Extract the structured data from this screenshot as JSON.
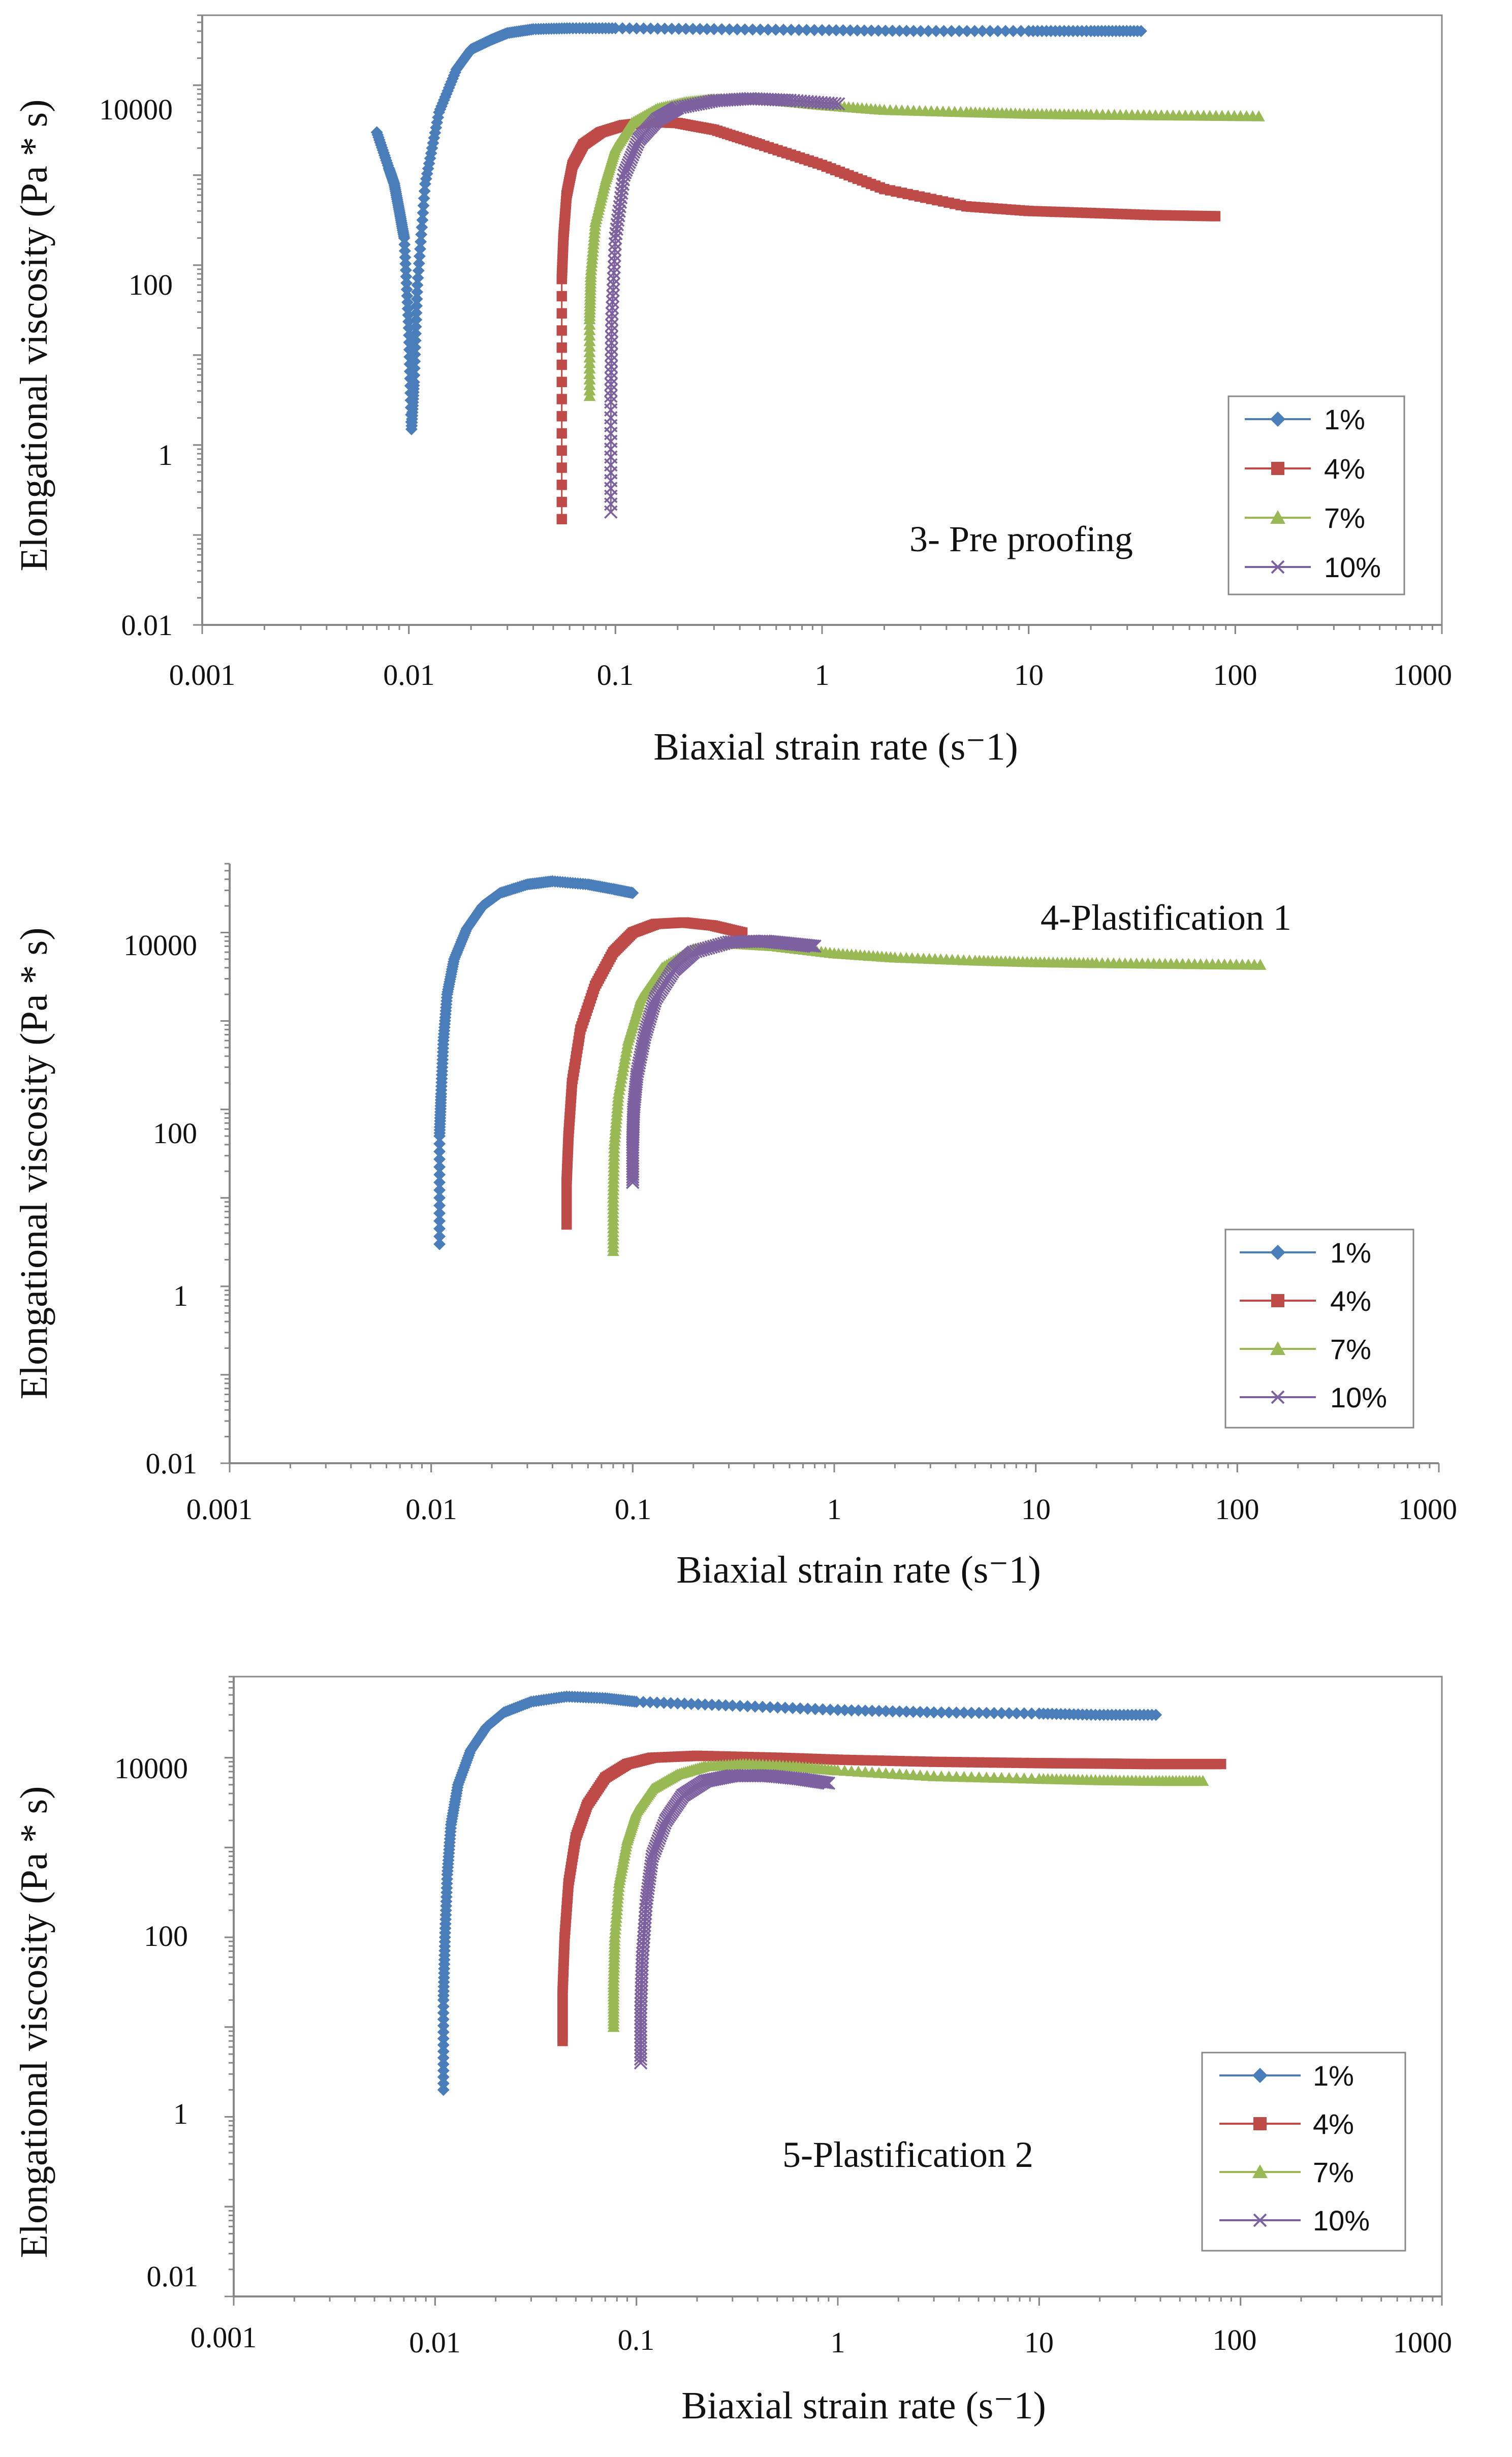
{
  "figure": {
    "colors": {
      "s1": "#4A7EBB",
      "s2": "#BE4B48",
      "s3": "#98B954",
      "s4": "#7D60A0",
      "axis": "#888888",
      "text": "#111111",
      "legend_border": "#888888"
    }
  },
  "chart_data": [
    {
      "type": "scatter",
      "xscale": "log",
      "yscale": "log",
      "xlabel": "Biaxial strain rate (s⁻1)",
      "ylabel": "Elongational viscosity (Pa * s)",
      "annotation": "3- Pre proofing",
      "annotation_position": "lower-center-right",
      "xlim": [
        0.001,
        1000
      ],
      "ylim": [
        0.01,
        60000
      ],
      "xticks": [
        0.001,
        0.01,
        0.1,
        1,
        10,
        100,
        1000
      ],
      "xtick_labels": [
        "0.001",
        "0.01",
        "0.1",
        "1",
        "10",
        "100",
        "1000"
      ],
      "yticks": [
        0.01,
        1,
        100,
        10000
      ],
      "ytick_labels": [
        "0.01",
        "1",
        "100",
        "10000"
      ],
      "legend_position": "lower-right",
      "series": [
        {
          "name": "1%",
          "marker": "diamond",
          "x": [
            0.007,
            0.008,
            0.0085,
            0.009,
            0.0095,
            0.01,
            0.0103,
            0.0106,
            0.011,
            0.012,
            0.014,
            0.017,
            0.02,
            0.025,
            0.03,
            0.04,
            0.06,
            0.1,
            0.3,
            1,
            3,
            10,
            20,
            35
          ],
          "y": [
            3000,
            1200,
            800,
            400,
            200,
            20,
            1.5,
            5,
            60,
            800,
            5000,
            15000,
            25000,
            32000,
            38000,
            42000,
            43000,
            43000,
            42000,
            41000,
            40000,
            40000,
            40000,
            40000
          ]
        },
        {
          "name": "4%",
          "marker": "square",
          "x": [
            0.055,
            0.055,
            0.056,
            0.058,
            0.062,
            0.07,
            0.085,
            0.11,
            0.15,
            0.2,
            0.3,
            0.5,
            1,
            2,
            5,
            10,
            20,
            40,
            80
          ],
          "y": [
            0.15,
            70,
            200,
            600,
            1300,
            2200,
            3000,
            3600,
            3900,
            3800,
            3200,
            2200,
            1300,
            700,
            450,
            400,
            380,
            360,
            350
          ]
        },
        {
          "name": "7%",
          "marker": "triangle",
          "x": [
            0.075,
            0.075,
            0.076,
            0.08,
            0.09,
            0.1,
            0.12,
            0.16,
            0.22,
            0.3,
            0.5,
            1,
            2,
            5,
            10,
            20,
            50,
            130
          ],
          "y": [
            3.5,
            25,
            80,
            300,
            900,
            2000,
            3800,
            5500,
            6500,
            7000,
            7000,
            6000,
            5300,
            5000,
            4800,
            4700,
            4600,
            4500
          ]
        },
        {
          "name": "10%",
          "marker": "x",
          "x": [
            0.095,
            0.095,
            0.096,
            0.1,
            0.11,
            0.13,
            0.16,
            0.2,
            0.3,
            0.45,
            0.7,
            1.2
          ],
          "y": [
            0.18,
            3,
            25,
            200,
            1000,
            2500,
            4200,
            5600,
            6700,
            7100,
            6800,
            6200
          ]
        }
      ]
    },
    {
      "type": "scatter",
      "xscale": "log",
      "yscale": "log",
      "xlabel": "Biaxial strain rate (s⁻1)",
      "ylabel": "Elongational viscosity (Pa * s)",
      "annotation": "4-Plastification 1",
      "annotation_position": "top-right",
      "xlim": [
        0.001,
        1000
      ],
      "ylim": [
        0.01,
        60000
      ],
      "xticks": [
        0.001,
        0.01,
        0.1,
        1,
        10,
        100,
        1000
      ],
      "xtick_labels": [
        "0.001",
        "0.01",
        "0.1",
        "1",
        "10",
        "100",
        "1000"
      ],
      "yticks": [
        0.01,
        1,
        100,
        10000
      ],
      "ytick_labels": [
        "0.01",
        "1",
        "100",
        "10000"
      ],
      "legend_position": "lower-right",
      "series": [
        {
          "name": "1%",
          "marker": "diamond",
          "x": [
            0.011,
            0.011,
            0.0112,
            0.0115,
            0.012,
            0.013,
            0.015,
            0.018,
            0.022,
            0.03,
            0.04,
            0.06,
            0.08,
            0.1
          ],
          "y": [
            3,
            50,
            150,
            600,
            2000,
            5000,
            11000,
            20000,
            28000,
            35000,
            38000,
            35000,
            31000,
            28000
          ]
        },
        {
          "name": "4%",
          "marker": "square",
          "x": [
            0.047,
            0.047,
            0.048,
            0.05,
            0.055,
            0.065,
            0.08,
            0.1,
            0.13,
            0.18,
            0.25,
            0.35
          ],
          "y": [
            5,
            15,
            50,
            200,
            800,
            2500,
            6000,
            10000,
            12500,
            13000,
            12000,
            10000
          ]
        },
        {
          "name": "7%",
          "marker": "triangle",
          "x": [
            0.08,
            0.08,
            0.081,
            0.085,
            0.095,
            0.11,
            0.14,
            0.2,
            0.3,
            0.5,
            1,
            2,
            5,
            10,
            20,
            50,
            130
          ],
          "y": [
            2.5,
            10,
            40,
            150,
            600,
            1800,
            4000,
            6500,
            7500,
            7000,
            5800,
            5200,
            4800,
            4600,
            4500,
            4400,
            4300
          ]
        },
        {
          "name": "10%",
          "marker": "x",
          "x": [
            0.1,
            0.1,
            0.101,
            0.105,
            0.115,
            0.13,
            0.16,
            0.2,
            0.3,
            0.45,
            0.6,
            0.8
          ],
          "y": [
            15,
            40,
            100,
            250,
            700,
            1800,
            3800,
            6000,
            7800,
            8000,
            7500,
            7000
          ]
        }
      ]
    },
    {
      "type": "scatter",
      "xscale": "log",
      "yscale": "log",
      "xlabel": "Biaxial strain rate (s⁻1)",
      "ylabel": "Elongational viscosity (Pa * s)",
      "annotation": "5-Plastification 2",
      "annotation_position": "lower-center-right",
      "xlim": [
        0.001,
        1000
      ],
      "ylim": [
        0.01,
        80000
      ],
      "xticks": [
        0.001,
        0.01,
        0.1,
        1,
        10,
        100,
        1000
      ],
      "xtick_labels": [
        "0.001",
        "0.01",
        "0.1",
        "1",
        "10",
        "100",
        "1000"
      ],
      "yticks": [
        0.01,
        1,
        100,
        10000
      ],
      "ytick_labels": [
        "0.01",
        "1",
        "100",
        "10000"
      ],
      "legend_position": "lower-right",
      "series": [
        {
          "name": "1%",
          "marker": "diamond",
          "x": [
            0.011,
            0.011,
            0.0112,
            0.0115,
            0.012,
            0.013,
            0.015,
            0.018,
            0.022,
            0.03,
            0.045,
            0.07,
            0.1,
            0.3,
            1,
            3,
            10,
            20,
            38
          ],
          "y": [
            2,
            20,
            100,
            500,
            1800,
            5000,
            12000,
            22000,
            32000,
            42000,
            48000,
            46000,
            42000,
            38000,
            34000,
            32000,
            31000,
            30000,
            30000
          ]
        },
        {
          "name": "4%",
          "marker": "square",
          "x": [
            0.043,
            0.043,
            0.044,
            0.046,
            0.05,
            0.057,
            0.07,
            0.09,
            0.12,
            0.2,
            0.5,
            1,
            3,
            10,
            20,
            35,
            80
          ],
          "y": [
            7,
            25,
            100,
            400,
            1300,
            3000,
            6000,
            8500,
            10000,
            10500,
            10000,
            9500,
            9000,
            8700,
            8600,
            8500,
            8500
          ]
        },
        {
          "name": "7%",
          "marker": "triangle",
          "x": [
            0.077,
            0.077,
            0.078,
            0.082,
            0.09,
            0.1,
            0.12,
            0.16,
            0.22,
            0.35,
            0.6,
            1,
            3,
            10,
            20,
            38,
            65
          ],
          "y": [
            10,
            30,
            100,
            400,
            1200,
            2500,
            4500,
            6500,
            8000,
            8500,
            8000,
            7200,
            6200,
            5800,
            5600,
            5500,
            5500
          ]
        },
        {
          "name": "10%",
          "marker": "x",
          "x": [
            0.105,
            0.105,
            0.107,
            0.112,
            0.12,
            0.14,
            0.17,
            0.22,
            0.3,
            0.45,
            0.65,
            0.9
          ],
          "y": [
            4,
            15,
            60,
            250,
            800,
            2000,
            3800,
            5500,
            6300,
            6300,
            5800,
            5200
          ]
        }
      ]
    }
  ]
}
